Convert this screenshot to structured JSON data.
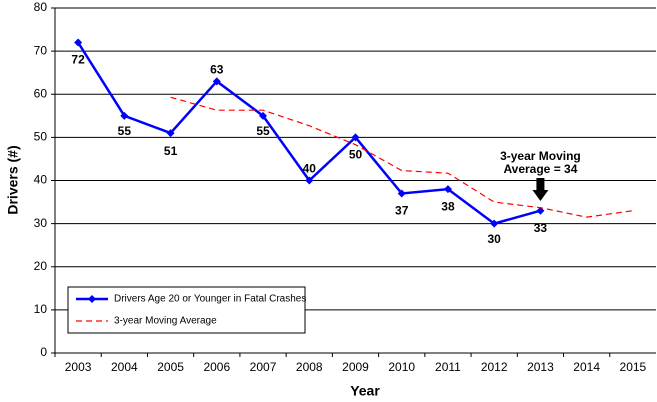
{
  "chart_data": {
    "type": "line",
    "x_label": "Year",
    "y_label": "Drivers (#)",
    "categories": [
      "2003",
      "2004",
      "2005",
      "2006",
      "2007",
      "2008",
      "2009",
      "2010",
      "2011",
      "2012",
      "2013",
      "2014",
      "2015"
    ],
    "series": [
      {
        "name": "Drivers Age 20 or Younger in Fatal Crashes",
        "color": "#0000ff",
        "dashed": false,
        "markers": true,
        "data_labels": true,
        "values": [
          72,
          55,
          51,
          63,
          55,
          40,
          50,
          37,
          38,
          30,
          33,
          null,
          null
        ]
      },
      {
        "name": "3-year Moving Average",
        "color": "#ff0000",
        "dashed": true,
        "markers": false,
        "data_labels": false,
        "values": [
          null,
          null,
          59.3,
          56.3,
          56.3,
          52.7,
          48.3,
          42.3,
          41.7,
          35,
          33.7,
          31.5,
          33
        ]
      }
    ],
    "ylim": [
      0,
      80
    ],
    "yticks": [
      0,
      10,
      20,
      30,
      40,
      50,
      60,
      70,
      80
    ],
    "grid": true,
    "legend": "lower left",
    "annotation": {
      "lines": [
        "3-year Moving",
        "Average = 34"
      ],
      "category": 10
    }
  }
}
